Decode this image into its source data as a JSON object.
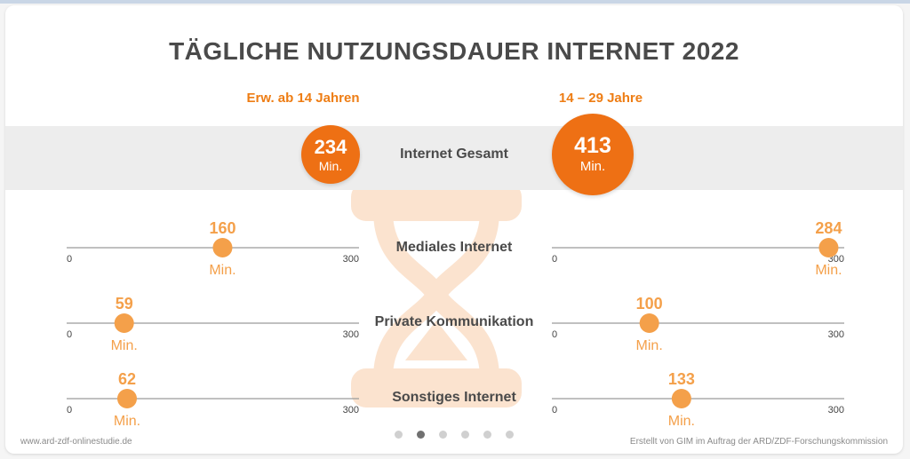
{
  "header": {
    "title": "TÄGLICHE NUTZUNGSDAUER INTERNET 2022",
    "col_left": "Erw. ab 14 Jahren",
    "col_right": "14 – 29 Jahre"
  },
  "totals": {
    "label": "Internet Gesamt",
    "left": {
      "value": "234",
      "unit": "Min."
    },
    "right": {
      "value": "413",
      "unit": "Min."
    }
  },
  "colors": {
    "accent": "#ee7014",
    "marker": "#f4a04a",
    "text": "#4a4a4a",
    "axis": "#9a9a9a"
  },
  "chart_data": {
    "type": "scatter",
    "title": "TÄGLICHE NUTZUNGSDAUER INTERNET 2022",
    "unit": "Min.",
    "axis_range": [
      0,
      300
    ],
    "axis_tick_labels": [
      "0",
      "300"
    ],
    "categories": [
      "Mediales Internet",
      "Private Kommunikation",
      "Sonstiges Internet"
    ],
    "series": [
      {
        "name": "Erw. ab 14 Jahren",
        "values": [
          160,
          59,
          62
        ]
      },
      {
        "name": "14 – 29 Jahre",
        "values": [
          284,
          100,
          133
        ]
      }
    ]
  },
  "pager": {
    "count": 6,
    "active": 1
  },
  "footer": {
    "left": "www.ard-zdf-onlinestudie.de",
    "right": "Erstellt von GIM im Auftrag der ARD/ZDF-Forschungskommission"
  }
}
